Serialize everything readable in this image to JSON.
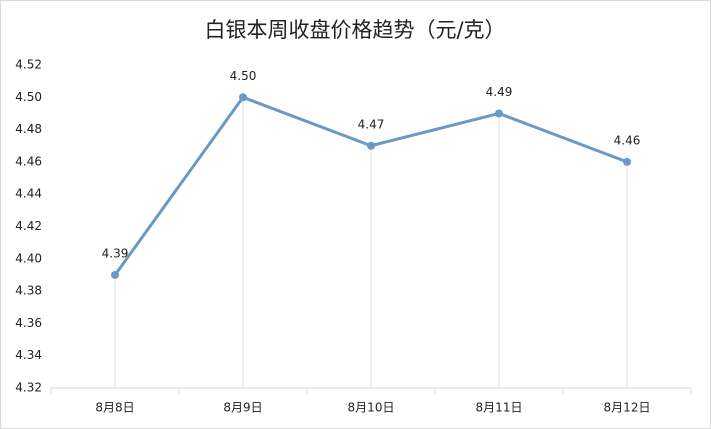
{
  "chart_data": {
    "type": "line",
    "title": "白银本周收盘价格趋势（元/克）",
    "categories": [
      "8月8日",
      "8月9日",
      "8月10日",
      "8月11日",
      "8月12日"
    ],
    "series": [
      {
        "color": "#6a99c6",
        "values": [
          4.39,
          4.5,
          4.47,
          4.49,
          4.46
        ],
        "value_labels": [
          "4.39",
          "4.50",
          "4.47",
          "4.49",
          "4.46"
        ]
      }
    ],
    "ylim": [
      4.32,
      4.52
    ],
    "yticks": [
      4.32,
      4.34,
      4.36,
      4.38,
      {
        "value": 4.4,
        "label": "4.40"
      },
      4.42,
      4.44,
      4.46,
      4.48,
      {
        "value": 4.5,
        "label": "4.50"
      },
      4.52
    ]
  }
}
